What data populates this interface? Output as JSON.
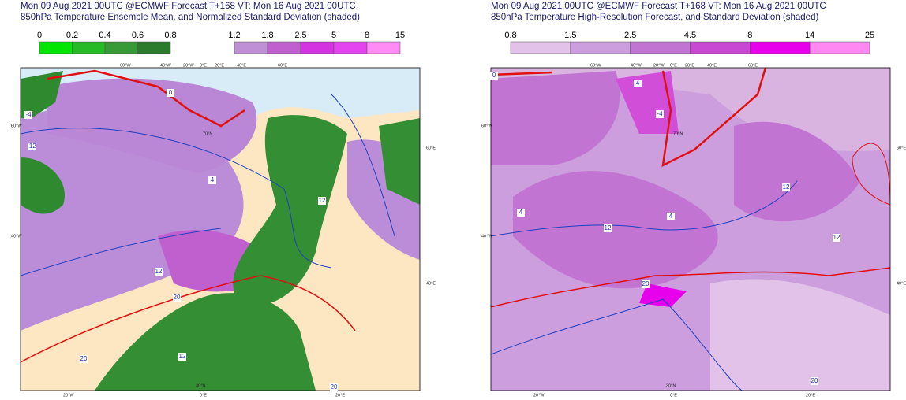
{
  "panels": [
    {
      "title": [
        "Mon 09 Aug 2021 00UTC @ECMWF Forecast T+168 VT: Mon 16 Aug 2021 00UTC",
        "850hPa Temperature Ensemble Mean, and Normalized Standard Deviation (shaded)"
      ],
      "colorbars": [
        {
          "levels": [
            0,
            0.2,
            0.4,
            0.6,
            0.8
          ],
          "colors": [
            "#00e600",
            "#26bb26",
            "#379a37",
            "#2c7a2c"
          ]
        },
        {
          "levels": [
            1.2,
            1.8,
            2.5,
            5,
            8,
            15
          ],
          "colors": [
            "#c090d6",
            "#c060cf",
            "#d333e0",
            "#e444f0",
            "#ff8cf4"
          ]
        }
      ],
      "map_labels": [
        "60°W",
        "40°W",
        "20°W",
        "0°E",
        "20°E",
        "40°E",
        "60°E",
        "60°W",
        "40°W",
        "60°E",
        "40°E",
        "20°W",
        "0°E",
        "20°E",
        "30°N",
        "70°N"
      ],
      "contour_labels": [
        "0",
        "-4",
        "-12",
        "4",
        "12",
        "12",
        "20",
        "20",
        "12",
        "20"
      ]
    },
    {
      "title": [
        "Mon 09 Aug 2021 00UTC @ECMWF Forecast T+168 VT: Mon 16 Aug 2021 00UTC",
        "850hPa Temperature High-Resolution Forecast, and Standard Deviation (shaded)"
      ],
      "colorbars": [
        {
          "levels": [
            0.8,
            1.5,
            2.5,
            4.5,
            8,
            14,
            25
          ],
          "colors": [
            "#e2c2e8",
            "#cc9ede",
            "#c274d2",
            "#c848d4",
            "#e600ec",
            "#ff88f2"
          ]
        }
      ],
      "map_labels": [
        "60°W",
        "40°W",
        "20°W",
        "0°E",
        "20°E",
        "40°E",
        "60°E",
        "60°W",
        "40°W",
        "60°E",
        "40°E",
        "20°W",
        "0°E",
        "20°E",
        "30°N",
        "70°N"
      ],
      "contour_labels": [
        "0",
        "4",
        "4",
        "-4",
        "4",
        "12",
        "12",
        "20",
        "20",
        "12"
      ]
    }
  ]
}
